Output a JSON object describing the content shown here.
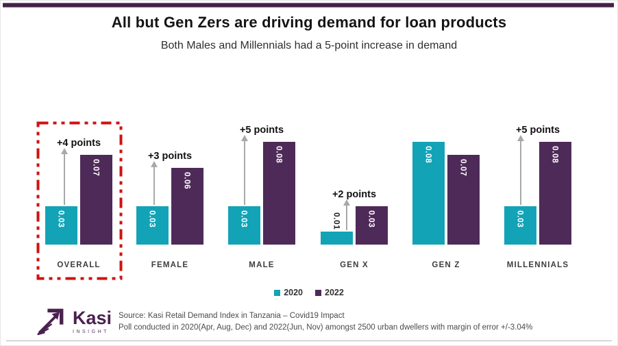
{
  "page": {
    "title": "All but Gen Zers are driving demand for loan products",
    "subtitle": "Both Males and Millennials had a 5-point increase in demand"
  },
  "chart_data": {
    "type": "bar",
    "title": "All but Gen Zers are driving demand for loan products",
    "subtitle": "Both Males and Millennials had a 5-point increase in demand",
    "categories": [
      "OVERALL",
      "FEMALE",
      "MALE",
      "GEN X",
      "GEN Z",
      "MILLENNIALS"
    ],
    "series": [
      {
        "name": "2020",
        "color": "#12a3b6",
        "values": [
          0.03,
          0.03,
          0.03,
          0.01,
          0.08,
          0.03
        ],
        "labels": [
          "0.03",
          "0.03",
          "0.03",
          "0.01",
          "0.08",
          "0.03"
        ]
      },
      {
        "name": "2022",
        "color": "#4e2a58",
        "values": [
          0.07,
          0.06,
          0.08,
          0.03,
          0.07,
          0.08
        ],
        "labels": [
          "0.07",
          "0.06",
          "0.08",
          "0.03",
          "0.07",
          "0.08"
        ]
      }
    ],
    "annotations": [
      "+4 points",
      "+3 points",
      "+5 points",
      "+2 points",
      "",
      "+5 points"
    ],
    "highlight_category": "OVERALL",
    "legend": [
      "2020",
      "2022"
    ],
    "legend_position": "bottom",
    "grid": false,
    "value_axis_hidden": true,
    "ylim": [
      0,
      0.09
    ]
  },
  "legend": {
    "items": [
      {
        "label": "2020",
        "color": "#12a3b6"
      },
      {
        "label": "2022",
        "color": "#4e2a58"
      }
    ]
  },
  "footer": {
    "logo_name": "Kasi",
    "logo_tagline": "INSIGHT",
    "source_line1": "Source: Kasi Retail Demand Index in Tanzania – Covid19 Impact",
    "source_line2": "Poll conducted in 2020(Apr, Aug, Dec) and 2022(Jun, Nov) amongst 2500 urban dwellers with margin of error +/-3.04%"
  },
  "colors": {
    "teal": "#12a3b6",
    "purple": "#4e2a58",
    "highlight_red": "#d01111",
    "arrow_gray": "#a8a8a8",
    "top_bar": "#432246"
  }
}
